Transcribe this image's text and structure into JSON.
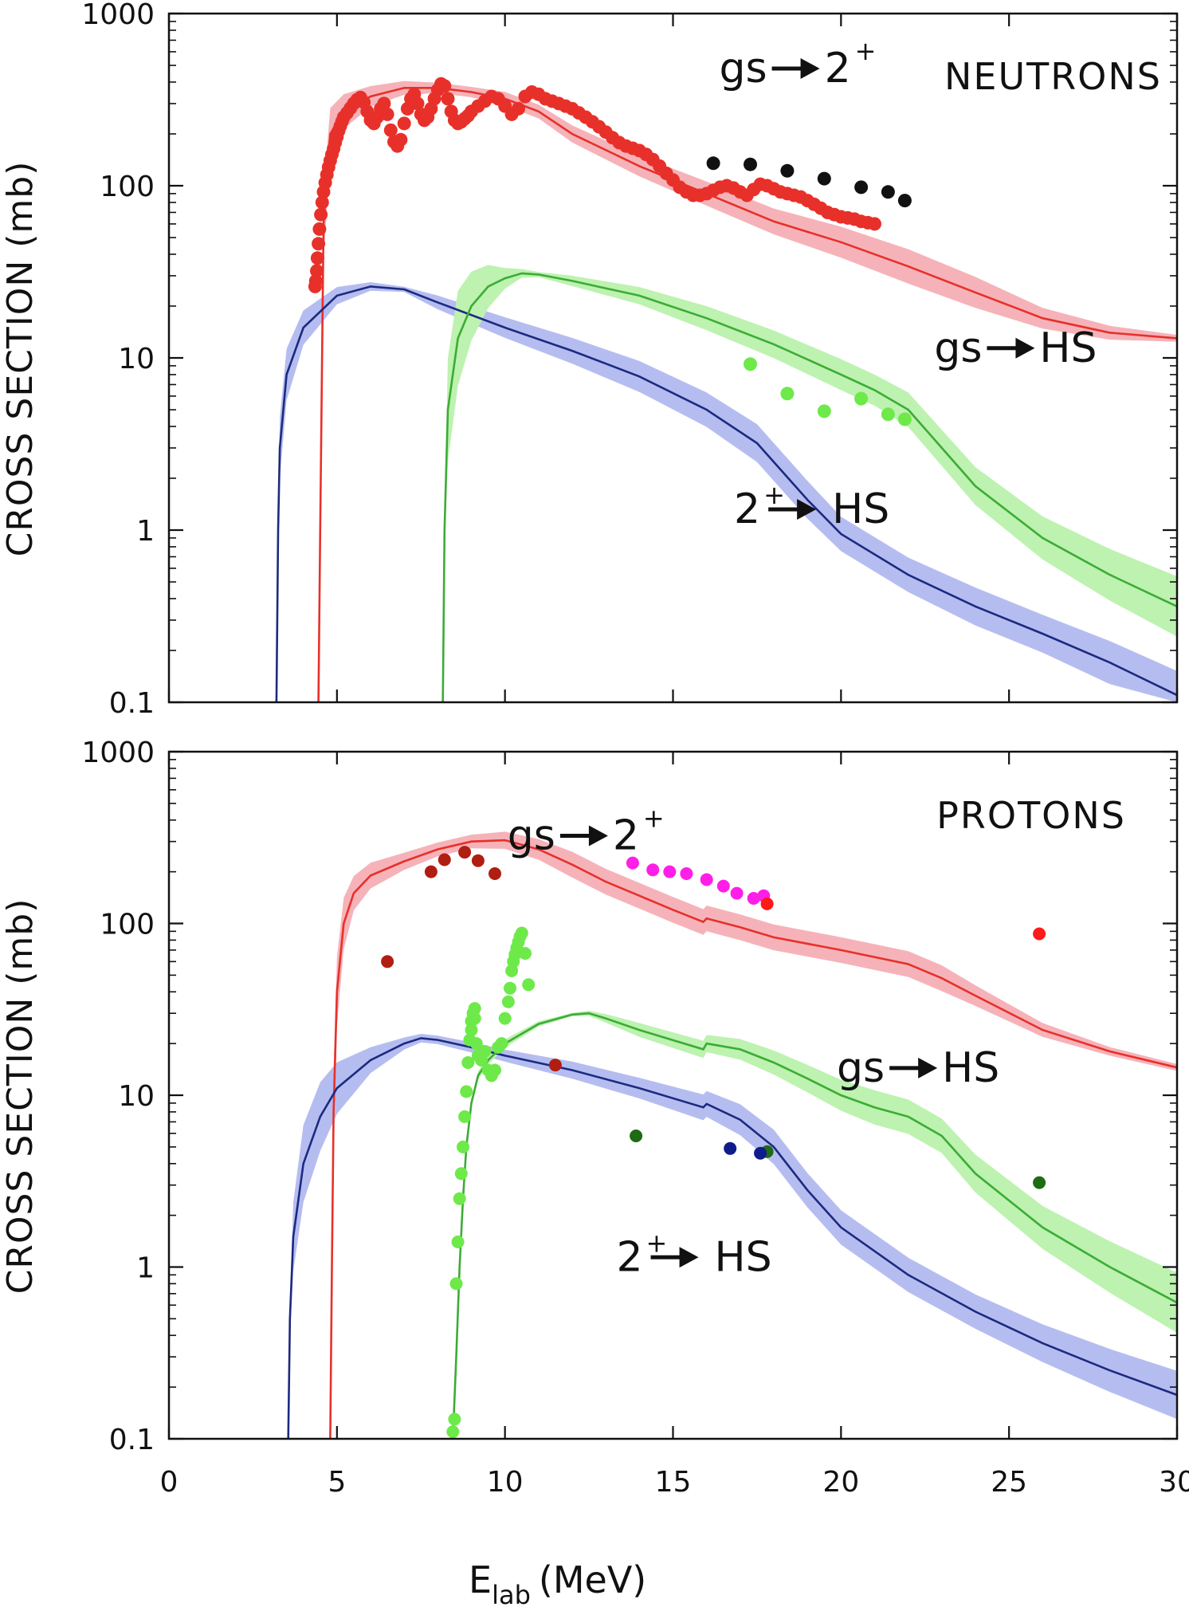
{
  "figure": {
    "xlabel_main": "E",
    "xlabel_sub": "lab",
    "xlabel_unit": "(MeV)"
  },
  "chart_data": [
    {
      "type": "line",
      "panel_label": "NEUTRONS",
      "ylabel": "CROSS SECTION (mb)",
      "xlim": [
        0,
        30
      ],
      "ylim": [
        0.1,
        1000
      ],
      "yscale": "log",
      "x_ticks": [
        0,
        5,
        10,
        15,
        20,
        25,
        30
      ],
      "y_ticks": [
        {
          "v": 0.1,
          "label": "0.1"
        },
        {
          "v": 1,
          "label": "1"
        },
        {
          "v": 10,
          "label": "10"
        },
        {
          "v": 100,
          "label": "100"
        },
        {
          "v": 1000,
          "label": "1000"
        }
      ],
      "show_x_tick_labels": false,
      "annotations": [
        {
          "lhs": "gs",
          "rhs_main": "2",
          "rhs_sup": "+",
          "at": [
            17.8,
            400
          ],
          "sup": true
        },
        {
          "lhs": "gs",
          "rhs_main": "HS",
          "rhs_sup": "",
          "at": [
            24.2,
            9.5
          ],
          "sup": false
        },
        {
          "lhs": "2",
          "lhs_sup": "+",
          "rhs_main": "HS",
          "rhs_sup": "",
          "at": [
            17.6,
            1.1
          ],
          "sup_left": true
        }
      ],
      "series": [
        {
          "color": "#e8302a",
          "band_color": "#f5b3b9",
          "x": [
            4.45,
            4.5,
            4.6,
            4.8,
            5.2,
            6,
            7,
            8,
            9,
            10,
            11,
            12,
            14,
            16,
            18,
            20,
            22,
            24,
            26,
            28,
            30
          ],
          "y": [
            0.1,
            1,
            60,
            200,
            270,
            330,
            370,
            370,
            350,
            320,
            270,
            200,
            130,
            90,
            62,
            47,
            34,
            24,
            17,
            14,
            13
          ],
          "band": [
            0,
            0.1,
            0.4,
            0.3,
            0.2,
            0.12,
            0.08,
            0.06,
            0.06,
            0.08,
            0.08,
            0.1,
            0.12,
            0.14,
            0.15,
            0.18,
            0.2,
            0.18,
            0.12,
            0.08,
            0.04
          ]
        },
        {
          "color": "#1c2a80",
          "band_color": "#b5bdf0",
          "x": [
            3.2,
            3.25,
            3.3,
            3.5,
            4,
            5,
            6,
            7,
            8,
            10,
            12,
            14,
            16,
            17.5,
            19,
            20,
            22,
            24,
            26,
            28,
            30
          ],
          "y": [
            0.1,
            1,
            3,
            8,
            15,
            23,
            26,
            25,
            21,
            15,
            11,
            7.8,
            5,
            3.2,
            1.5,
            0.95,
            0.55,
            0.36,
            0.25,
            0.17,
            0.11
          ],
          "band": [
            0,
            0.15,
            0.35,
            0.3,
            0.2,
            0.1,
            0.05,
            0.03,
            0.08,
            0.12,
            0.15,
            0.18,
            0.2,
            0.22,
            0.22,
            0.2,
            0.2,
            0.22,
            0.22,
            0.25,
            0.28
          ]
        },
        {
          "color": "#3cac35",
          "band_color": "#bdf2b0",
          "x": [
            8.15,
            8.2,
            8.3,
            8.6,
            9,
            9.5,
            10,
            10.5,
            11,
            12,
            14,
            16,
            18,
            20,
            21,
            22,
            24,
            26,
            28,
            30
          ],
          "y": [
            0.1,
            1,
            5,
            13,
            20,
            26,
            29,
            31,
            30.5,
            28,
            23,
            17,
            12,
            8,
            6.5,
            5,
            1.8,
            0.9,
            0.55,
            0.36
          ],
          "band": [
            0,
            0.2,
            0.6,
            0.55,
            0.4,
            0.25,
            0.12,
            0.05,
            0.03,
            0.06,
            0.1,
            0.14,
            0.16,
            0.18,
            0.18,
            0.2,
            0.22,
            0.25,
            0.3,
            0.35
          ]
        }
      ],
      "points": [
        {
          "color": "#e8302a",
          "r": 8.5,
          "x": [
            4.35,
            4.37,
            4.4,
            4.42,
            4.45,
            4.48,
            4.52,
            4.56,
            4.6,
            4.65,
            4.7,
            4.75,
            4.8,
            4.85,
            4.9,
            4.95,
            5.0,
            5.05,
            5.1,
            5.15,
            5.2,
            5.3,
            5.4,
            5.5,
            5.6,
            5.7,
            5.8,
            5.9,
            6.0,
            6.1,
            6.2,
            6.3,
            6.4,
            6.5,
            6.6,
            6.7,
            6.8,
            6.9,
            7.0,
            7.1,
            7.2,
            7.3,
            7.4,
            7.5,
            7.6,
            7.7,
            7.8,
            7.9,
            8.0,
            8.1,
            8.2,
            8.3,
            8.4,
            8.5,
            8.6,
            8.7,
            8.8,
            8.9,
            9.0,
            9.2,
            9.4,
            9.6,
            9.8,
            10.0,
            10.2,
            10.4,
            10.6,
            10.8,
            11.0,
            11.2,
            11.4,
            11.6,
            11.8,
            12.0,
            12.2,
            12.4,
            12.6,
            12.8,
            13.0,
            13.2,
            13.4,
            13.6,
            13.8,
            14.0,
            14.2,
            14.4,
            14.6,
            14.8,
            15.0,
            15.2,
            15.4,
            15.6,
            15.8,
            16.0,
            16.2,
            16.4,
            16.6,
            16.8,
            17.0,
            17.2,
            17.4,
            17.6,
            17.8,
            18.0,
            18.2,
            18.4,
            18.6,
            18.8,
            19.0,
            19.2,
            19.4,
            19.6,
            19.8,
            20.0,
            20.2,
            20.4,
            20.6,
            20.8,
            21.0
          ],
          "y": [
            26,
            28,
            32,
            38,
            46,
            56,
            68,
            80,
            92,
            104,
            116,
            128,
            140,
            152,
            164,
            178,
            192,
            208,
            222,
            236,
            250,
            265,
            282,
            300,
            316,
            325,
            305,
            270,
            240,
            230,
            250,
            280,
            300,
            260,
            210,
            180,
            170,
            185,
            230,
            280,
            320,
            340,
            300,
            260,
            240,
            250,
            280,
            320,
            360,
            390,
            380,
            320,
            270,
            240,
            230,
            235,
            245,
            255,
            270,
            290,
            310,
            330,
            320,
            290,
            260,
            280,
            330,
            350,
            340,
            320,
            310,
            300,
            290,
            280,
            265,
            250,
            235,
            220,
            205,
            190,
            178,
            170,
            165,
            160,
            152,
            142,
            130,
            118,
            108,
            98,
            92,
            88,
            88,
            90,
            94,
            98,
            100,
            97,
            92,
            88,
            95,
            102,
            100,
            96,
            92,
            90,
            88,
            86,
            82,
            78,
            74,
            70,
            68,
            66,
            65,
            64,
            62,
            61,
            60
          ]
        },
        {
          "color": "#111111",
          "r": 8.5,
          "x": [
            16.2,
            17.3,
            18.4,
            19.5,
            20.6,
            21.4,
            21.9
          ],
          "y": [
            135,
            133,
            122,
            110,
            98,
            92,
            82
          ]
        },
        {
          "color": "#6ee94a",
          "r": 8.5,
          "x": [
            17.3,
            18.4,
            19.5,
            20.6,
            21.4,
            21.9
          ],
          "y": [
            9.2,
            6.2,
            4.9,
            5.8,
            4.7,
            4.4
          ]
        }
      ]
    },
    {
      "type": "line",
      "panel_label": "PROTONS",
      "ylabel": "CROSS SECTION (mb)",
      "xlim": [
        0,
        30
      ],
      "ylim": [
        0.1,
        1000
      ],
      "yscale": "log",
      "x_ticks": [
        0,
        5,
        10,
        15,
        20,
        25,
        30
      ],
      "x_tick_labels": [
        "0",
        "5",
        "10",
        "15",
        "20",
        "25",
        "30"
      ],
      "y_ticks": [
        {
          "v": 0.1,
          "label": "0.1"
        },
        {
          "v": 1,
          "label": "1"
        },
        {
          "v": 10,
          "label": "10"
        },
        {
          "v": 100,
          "label": "100"
        },
        {
          "v": 1000,
          "label": "1000"
        }
      ],
      "show_x_tick_labels": true,
      "annotations": [
        {
          "lhs": "gs",
          "rhs_main": "2",
          "rhs_sup": "+",
          "at": [
            11.5,
            270
          ],
          "sup": true
        },
        {
          "lhs": "gs",
          "rhs_main": "HS",
          "rhs_sup": "",
          "at": [
            21.3,
            12
          ],
          "sup": false
        },
        {
          "lhs": "2",
          "lhs_sup": "+",
          "rhs_main": "HS",
          "rhs_sup": "",
          "at": [
            14.1,
            0.95
          ],
          "sup_left": true
        }
      ],
      "series": [
        {
          "color": "#e8302a",
          "band_color": "#f5b3b9",
          "x": [
            4.8,
            4.85,
            4.9,
            5.0,
            5.2,
            5.5,
            6,
            7,
            8,
            9,
            10,
            11,
            12,
            13,
            14,
            15,
            15.9,
            16,
            17,
            18,
            20,
            22,
            23,
            24,
            26,
            28,
            30
          ],
          "y": [
            0.1,
            1,
            8,
            40,
            100,
            150,
            190,
            230,
            270,
            300,
            305,
            270,
            220,
            175,
            145,
            120,
            102,
            107,
            95,
            83,
            70,
            58,
            48,
            38,
            24,
            18,
            14.5
          ],
          "band": [
            0,
            0.2,
            0.5,
            0.4,
            0.3,
            0.2,
            0.15,
            0.1,
            0.08,
            0.08,
            0.1,
            0.12,
            0.15,
            0.15,
            0.15,
            0.15,
            0.15,
            0.15,
            0.15,
            0.15,
            0.15,
            0.15,
            0.15,
            0.12,
            0.08,
            0.05,
            0.04
          ]
        },
        {
          "color": "#1c2a80",
          "band_color": "#b5bdf0",
          "x": [
            3.55,
            3.6,
            3.7,
            4.0,
            4.5,
            5,
            6,
            7,
            7.5,
            8,
            9,
            10,
            12,
            14,
            15.9,
            16,
            17,
            18,
            19,
            20,
            22,
            24,
            26,
            28,
            30
          ],
          "y": [
            0.1,
            0.5,
            1.5,
            4,
            7.5,
            11,
            16,
            20,
            21.5,
            21,
            19,
            17,
            14,
            11,
            8.5,
            8.9,
            7.2,
            5,
            2.8,
            1.7,
            0.9,
            0.55,
            0.36,
            0.25,
            0.18
          ],
          "band": [
            0,
            0.2,
            0.4,
            0.45,
            0.4,
            0.3,
            0.15,
            0.07,
            0.05,
            0.05,
            0.06,
            0.07,
            0.1,
            0.12,
            0.15,
            0.15,
            0.18,
            0.2,
            0.2,
            0.2,
            0.2,
            0.2,
            0.22,
            0.25,
            0.28
          ]
        },
        {
          "color": "#3cac35",
          "band_color": "#bdf2b0",
          "x": [
            8.45,
            8.55,
            8.65,
            8.75,
            8.85,
            9.0,
            9.2,
            9.5,
            10,
            11,
            12,
            12.5,
            13,
            14,
            15.9,
            16,
            17,
            18,
            19,
            20,
            21,
            22,
            23,
            24,
            26,
            28,
            30
          ],
          "y": [
            0.1,
            0.3,
            1,
            2.5,
            5,
            9,
            13,
            16,
            20,
            26,
            29.5,
            30,
            28,
            24,
            18.5,
            20,
            18.5,
            15.5,
            12.5,
            10,
            8.5,
            7.5,
            5.8,
            3.5,
            1.7,
            1.0,
            0.62
          ],
          "band": [
            0,
            0.05,
            0.05,
            0.05,
            0.05,
            0.05,
            0.05,
            0.05,
            0.05,
            0.03,
            0.02,
            0.03,
            0.05,
            0.08,
            0.1,
            0.1,
            0.12,
            0.14,
            0.16,
            0.18,
            0.2,
            0.2,
            0.2,
            0.22,
            0.25,
            0.3,
            0.35
          ]
        }
      ],
      "points": [
        {
          "color": "#b01e12",
          "r": 8,
          "x": [
            6.5,
            7.8,
            8.2,
            8.8,
            9.2,
            9.7,
            11.5
          ],
          "y": [
            60,
            200,
            235,
            260,
            232,
            195,
            15
          ]
        },
        {
          "color": "#ff1ee8",
          "r": 8,
          "x": [
            13.8,
            14.4,
            14.9,
            15.4,
            16.0,
            16.5,
            16.9,
            17.4,
            17.7
          ],
          "y": [
            225,
            205,
            200,
            195,
            180,
            165,
            150,
            140,
            145
          ]
        },
        {
          "color": "#ff1a1a",
          "r": 8,
          "x": [
            17.8,
            25.9
          ],
          "y": [
            130,
            87
          ]
        },
        {
          "color": "#1d6b12",
          "r": 8,
          "x": [
            13.9,
            17.8,
            25.9
          ],
          "y": [
            5.8,
            4.7,
            3.1
          ]
        },
        {
          "color": "#111c8c",
          "r": 8,
          "x": [
            16.7,
            17.6
          ],
          "y": [
            4.9,
            4.6
          ]
        },
        {
          "color": "#6ee94a",
          "r": 8,
          "x": [
            8.45,
            8.5,
            8.55,
            8.6,
            8.65,
            8.7,
            8.75,
            8.8,
            8.85,
            8.9,
            8.95,
            9.0,
            9.0,
            9.05,
            9.1,
            9.1,
            9.15,
            9.2,
            9.3,
            9.4,
            9.5,
            9.6,
            9.7,
            9.8,
            9.9,
            10.0,
            10.1,
            10.15,
            10.2,
            10.25,
            10.3,
            10.35,
            10.4,
            10.45,
            10.5,
            10.6,
            10.7
          ],
          "y": [
            0.11,
            0.13,
            0.8,
            1.4,
            2.5,
            3.5,
            5,
            7.5,
            10.5,
            15.5,
            21,
            24,
            27,
            30,
            32,
            28,
            20,
            17,
            16,
            18,
            14,
            13,
            14,
            19,
            20,
            28,
            35,
            42,
            53,
            60,
            66,
            72,
            78,
            84,
            88,
            67,
            44
          ]
        }
      ]
    }
  ]
}
